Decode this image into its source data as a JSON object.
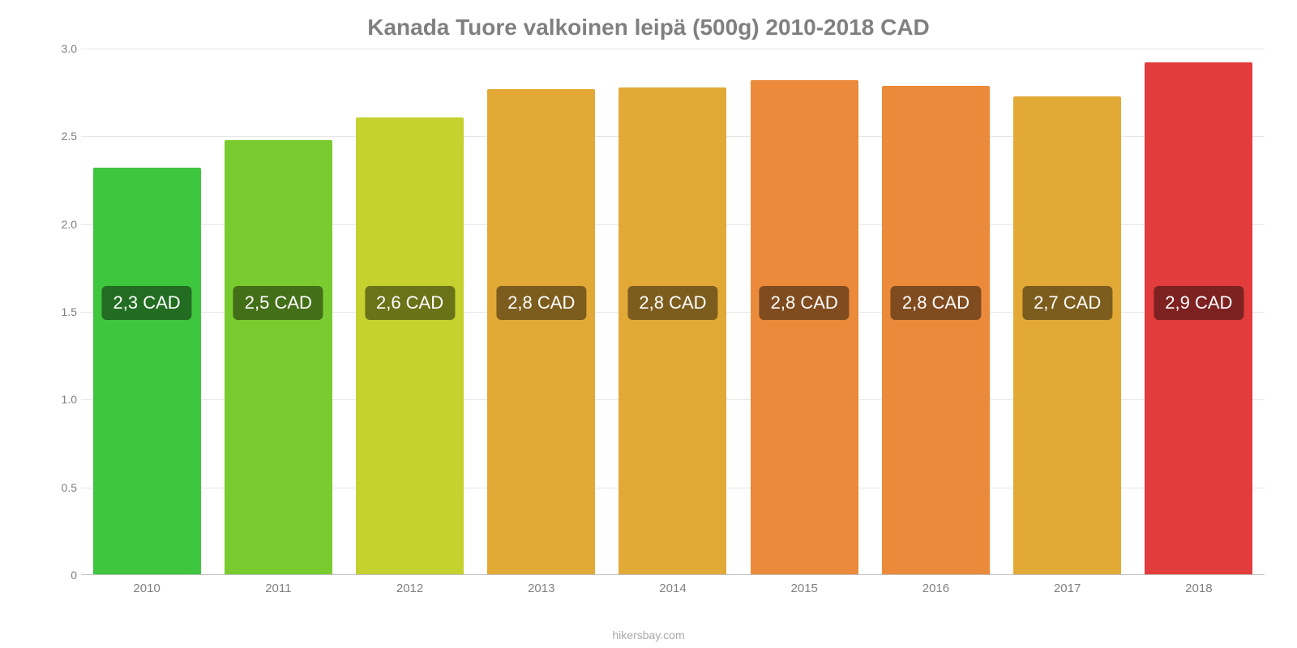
{
  "chart": {
    "type": "bar",
    "title": "Kanada Tuore valkoinen leipä (500g) 2010-2018 CAD",
    "title_fontsize": 28,
    "title_color": "#808080",
    "background_color": "#ffffff",
    "grid_color": "#e6e6e6",
    "axis_color": "#bfbfbf",
    "tick_color": "#808080",
    "tick_fontsize": 14,
    "bar_width": 0.82,
    "ylim": [
      0,
      3.0
    ],
    "ytick_step": 0.5,
    "yticks": [
      "0",
      "0.5",
      "1.0",
      "1.5",
      "2.0",
      "2.5",
      "3.0"
    ],
    "categories": [
      "2010",
      "2011",
      "2012",
      "2013",
      "2014",
      "2015",
      "2016",
      "2017",
      "2018"
    ],
    "values": [
      2.32,
      2.48,
      2.61,
      2.77,
      2.78,
      2.82,
      2.79,
      2.73,
      2.92
    ],
    "value_labels": [
      "2,3 CAD",
      "2,5 CAD",
      "2,6 CAD",
      "2,8 CAD",
      "2,8 CAD",
      "2,8 CAD",
      "2,8 CAD",
      "2,7 CAD",
      "2,9 CAD"
    ],
    "bar_colors": [
      "#3fc63f",
      "#7acb2f",
      "#c4d12f",
      "#e3a937",
      "#e3a937",
      "#ea8a3a",
      "#ea8a3a",
      "#e3a937",
      "#e33c3c"
    ],
    "label_bg": "rgba(0,0,0,0.45)",
    "label_color": "#ffffff",
    "label_fontsize": 22,
    "label_y_value": 1.55,
    "attribution": "hikersbay.com",
    "attribution_color": "#a8a8a8"
  }
}
